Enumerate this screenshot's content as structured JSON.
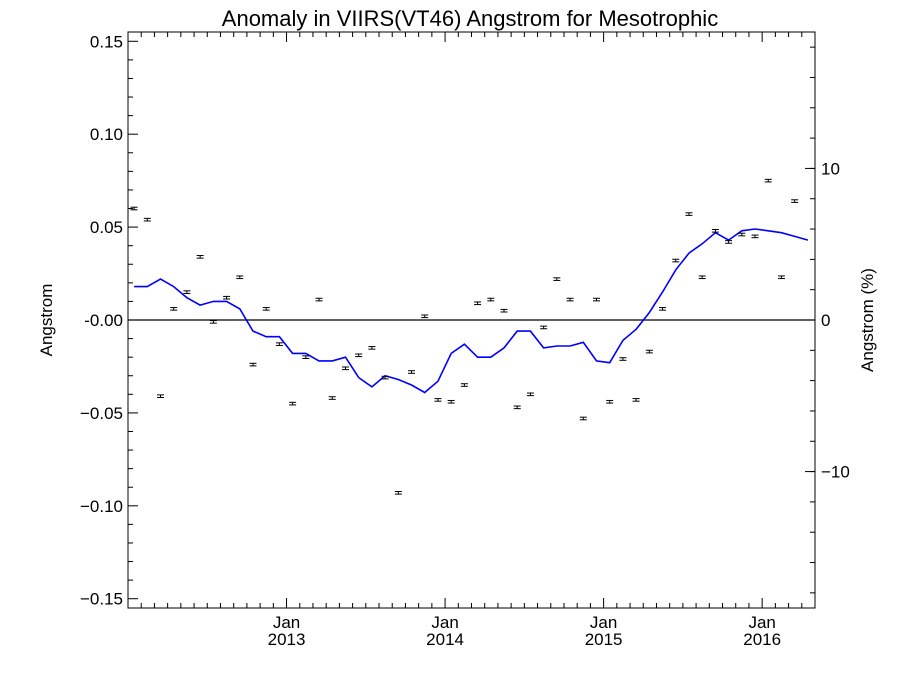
{
  "chart_data": {
    "type": "scatter",
    "title": "Anomaly in VIIRS(VT46) Angstrom for Mesotrophic",
    "ylabel": "Angstrom",
    "ylabel_right": "Angstrom (%)",
    "ylim": [
      -0.155,
      0.155
    ],
    "yticks": [
      -0.15,
      -0.1,
      -0.05,
      0.0,
      0.05,
      0.1,
      0.15
    ],
    "ytick_labels": [
      "−0.15",
      "−0.10",
      "−0.05",
      "-0.00",
      "0.05",
      "0.10",
      "0.15"
    ],
    "ylim_right_percent": [
      -19.0,
      19.0
    ],
    "yticks_right": [
      -10,
      0,
      10
    ],
    "ytick_labels_right": [
      "−10",
      "0",
      "10"
    ],
    "xlim": [
      "2012-01-01",
      "2016-05-01"
    ],
    "xticks": [
      {
        "date": "2013-01-01",
        "label_top": "Jan",
        "label_bottom": "2013"
      },
      {
        "date": "2014-01-01",
        "label_top": "Jan",
        "label_bottom": "2014"
      },
      {
        "date": "2015-01-01",
        "label_top": "Jan",
        "label_bottom": "2015"
      },
      {
        "date": "2016-01-01",
        "label_top": "Jan",
        "label_bottom": "2016"
      }
    ],
    "zero_line": 0,
    "series": [
      {
        "kind": "monthly-points-with-error-bars",
        "color": "#000000",
        "x": [
          "2012-01",
          "2012-02",
          "2012-03",
          "2012-04",
          "2012-05",
          "2012-06",
          "2012-07",
          "2012-08",
          "2012-09",
          "2012-10",
          "2012-11",
          "2012-12",
          "2013-01",
          "2013-02",
          "2013-03",
          "2013-04",
          "2013-05",
          "2013-06",
          "2013-07",
          "2013-08",
          "2013-09",
          "2013-10",
          "2013-11",
          "2013-12",
          "2014-01",
          "2014-02",
          "2014-03",
          "2014-04",
          "2014-05",
          "2014-06",
          "2014-07",
          "2014-08",
          "2014-09",
          "2014-10",
          "2014-11",
          "2014-12",
          "2015-01",
          "2015-02",
          "2015-03",
          "2015-04",
          "2015-05",
          "2015-06",
          "2015-07",
          "2015-08",
          "2015-09",
          "2015-10",
          "2015-11",
          "2015-12",
          "2016-01",
          "2016-02",
          "2016-03"
        ],
        "y": [
          0.06,
          0.054,
          -0.041,
          0.006,
          0.015,
          0.034,
          -0.001,
          0.012,
          0.023,
          -0.024,
          0.006,
          -0.013,
          -0.045,
          -0.02,
          0.011,
          -0.042,
          -0.026,
          -0.019,
          -0.015,
          -0.031,
          -0.093,
          -0.028,
          0.002,
          -0.043,
          -0.044,
          -0.035,
          0.009,
          0.011,
          0.005,
          -0.047,
          -0.04,
          -0.004,
          0.022,
          0.011,
          -0.053,
          0.011,
          -0.044,
          -0.021,
          -0.043,
          -0.017,
          0.006,
          0.032,
          0.057,
          0.023,
          0.048,
          0.042,
          0.046,
          0.045,
          0.075,
          0.023,
          0.064
        ]
      },
      {
        "kind": "running-mean-line",
        "color": "#0000ff",
        "x": [
          "2012-01",
          "2012-02",
          "2012-03",
          "2012-04",
          "2012-05",
          "2012-06",
          "2012-07",
          "2012-08",
          "2012-09",
          "2012-10",
          "2012-11",
          "2012-12",
          "2013-01",
          "2013-02",
          "2013-03",
          "2013-04",
          "2013-05",
          "2013-06",
          "2013-07",
          "2013-08",
          "2013-09",
          "2013-10",
          "2013-11",
          "2013-12",
          "2014-01",
          "2014-02",
          "2014-03",
          "2014-04",
          "2014-05",
          "2014-06",
          "2014-07",
          "2014-08",
          "2014-09",
          "2014-10",
          "2014-11",
          "2014-12",
          "2015-01",
          "2015-02",
          "2015-03",
          "2015-04",
          "2015-05",
          "2015-06",
          "2015-07",
          "2015-08",
          "2015-09",
          "2015-10",
          "2015-11",
          "2015-12",
          "2016-01",
          "2016-02",
          "2016-03",
          "2016-04"
        ],
        "y": [
          0.018,
          0.018,
          0.022,
          0.018,
          0.012,
          0.008,
          0.01,
          0.01,
          0.006,
          -0.006,
          -0.009,
          -0.009,
          -0.018,
          -0.018,
          -0.022,
          -0.022,
          -0.02,
          -0.031,
          -0.036,
          -0.03,
          -0.032,
          -0.035,
          -0.039,
          -0.033,
          -0.018,
          -0.013,
          -0.02,
          -0.02,
          -0.015,
          -0.006,
          -0.006,
          -0.015,
          -0.014,
          -0.014,
          -0.012,
          -0.022,
          -0.023,
          -0.011,
          -0.005,
          0.004,
          0.015,
          0.027,
          0.036,
          0.041,
          0.047,
          0.043,
          0.048,
          0.049,
          0.048,
          0.047,
          0.045,
          0.043
        ]
      }
    ]
  }
}
